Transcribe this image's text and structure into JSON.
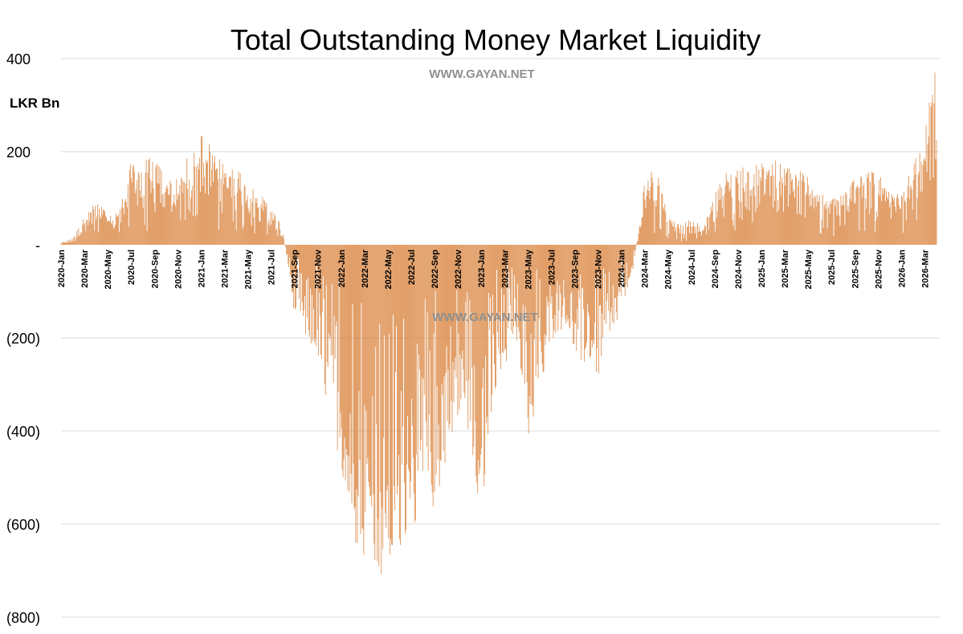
{
  "chart_data": {
    "type": "bar",
    "title": "Total Outstanding Money Market Liquidity",
    "ylabel": "LKR Bn",
    "xlabel": "",
    "watermarks": [
      "WWW.GAYAN.NET",
      "WWW.GAYAN.NET"
    ],
    "ylim": [
      -800,
      420
    ],
    "y_ticks": [
      {
        "value": 400,
        "label": "400"
      },
      {
        "value": 200,
        "label": "200"
      },
      {
        "value": 0,
        "label": "-"
      },
      {
        "value": -200,
        "label": "(200)"
      },
      {
        "value": -400,
        "label": "(400)"
      },
      {
        "value": -600,
        "label": "(600)"
      },
      {
        "value": -800,
        "label": "(800)"
      }
    ],
    "grid": true,
    "bar_color": "#d9823c",
    "grid_color": "#d9d9d9",
    "x_tick_labels": [
      "2020-Jan",
      "2020-Mar",
      "2020-May",
      "2020-Jul",
      "2020-Sep",
      "2020-Nov",
      "2021-Jan",
      "2021-Mar",
      "2021-May",
      "2021-Jul",
      "2021-Sep",
      "2021-Nov",
      "2022-Jan",
      "2022-Mar",
      "2022-May",
      "2022-Jul",
      "2022-Sep",
      "2022-Nov",
      "2023-Jan",
      "2023-Mar",
      "2023-May",
      "2023-Jul",
      "2023-Sep",
      "2023-Nov",
      "2024-Jan",
      "2024-Mar",
      "2024-May",
      "2024-Jul",
      "2024-Sep",
      "2024-Nov",
      "2025-Jan",
      "2025-Mar",
      "2025-May",
      "2025-Jul",
      "2025-Sep",
      "2025-Nov",
      "2026-Jan",
      "2026-Mar"
    ],
    "envelope_months": [
      0,
      1,
      2,
      3,
      4,
      5,
      6,
      7,
      8,
      9,
      10,
      11,
      12,
      13,
      14,
      15,
      16,
      17,
      18,
      19,
      20,
      21,
      22,
      23,
      24,
      25,
      26,
      27,
      28,
      29,
      30,
      31,
      32,
      33,
      34,
      35,
      36,
      37,
      38,
      39,
      40,
      41,
      42,
      43,
      44,
      45,
      46,
      47,
      48,
      49,
      50,
      51,
      52,
      53,
      54,
      55,
      56,
      57,
      58,
      59,
      60,
      61,
      62,
      63,
      64,
      65,
      66,
      67,
      68,
      69,
      70,
      71,
      72,
      73,
      74,
      75
    ],
    "envelope_values": [
      5,
      15,
      60,
      95,
      70,
      75,
      180,
      185,
      190,
      150,
      140,
      200,
      245,
      210,
      170,
      170,
      145,
      110,
      85,
      35,
      -150,
      -200,
      -260,
      -360,
      -500,
      -640,
      -700,
      -735,
      -720,
      -700,
      -620,
      -610,
      -560,
      -470,
      -370,
      -420,
      -600,
      -350,
      -270,
      -200,
      -420,
      -330,
      -220,
      -180,
      -230,
      -260,
      -290,
      -210,
      -140,
      -60,
      140,
      175,
      60,
      45,
      55,
      40,
      110,
      160,
      175,
      160,
      180,
      185,
      180,
      170,
      150,
      110,
      100,
      115,
      160,
      170,
      155,
      110,
      115,
      170,
      250,
      405
    ]
  }
}
